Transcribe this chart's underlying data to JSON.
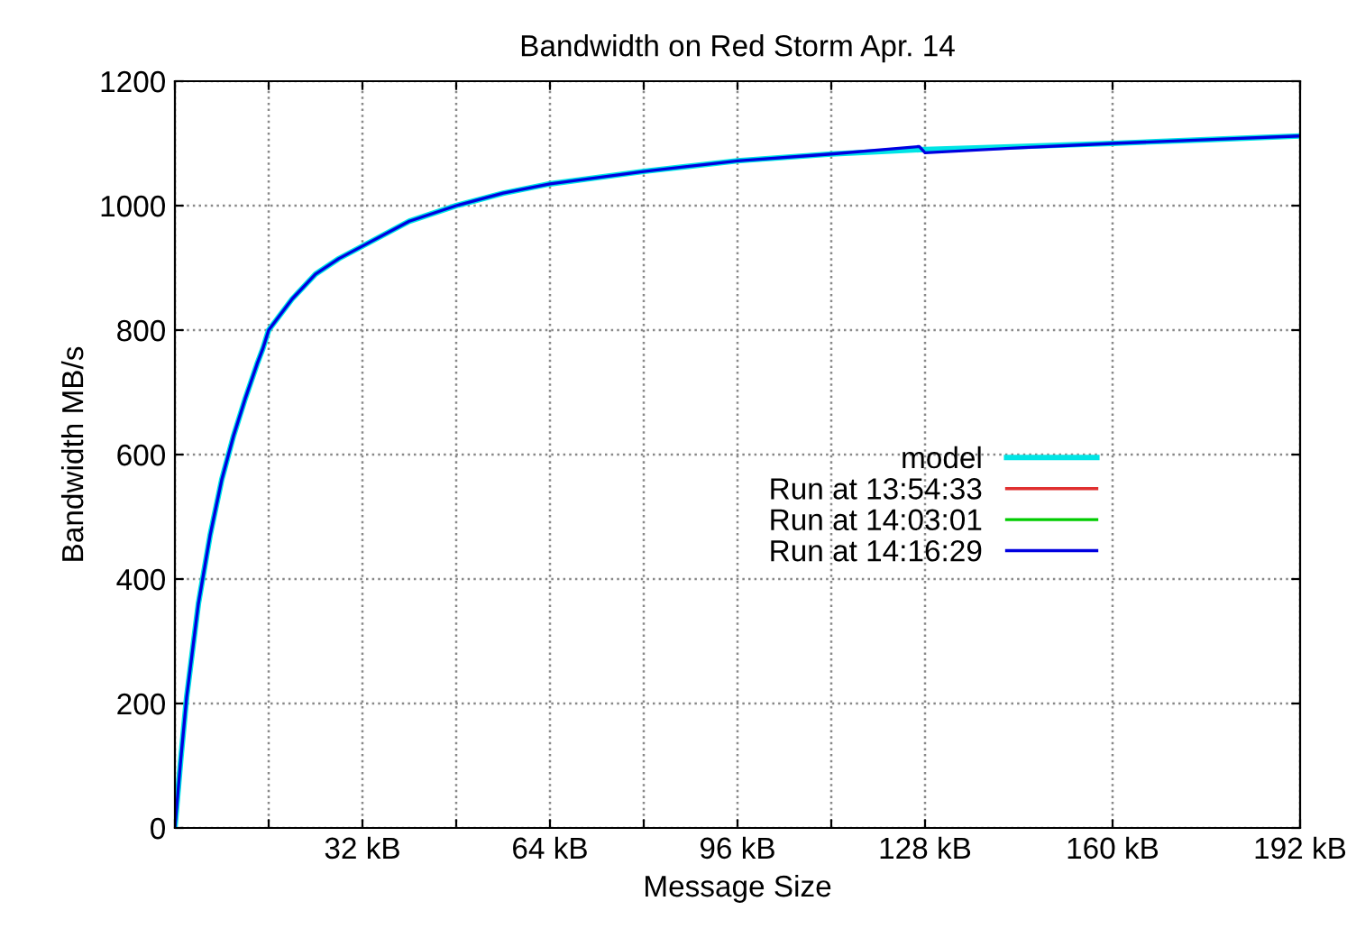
{
  "chart_data": {
    "type": "line",
    "title": "Bandwidth on Red Storm Apr. 14",
    "xlabel": "Message Size",
    "ylabel": "Bandwidth MB/s",
    "x": [
      0,
      1,
      2,
      4,
      6,
      8,
      10,
      12,
      14,
      15,
      16,
      20,
      24,
      28,
      32,
      40,
      48,
      56,
      64,
      80,
      96,
      112,
      127,
      128,
      144,
      160,
      176,
      192
    ],
    "series": [
      {
        "name": "model",
        "color": "#00e5e5",
        "values": [
          0,
          110,
          210,
          360,
          470,
          560,
          630,
          690,
          745,
          770,
          800,
          850,
          890,
          915,
          935,
          975,
          1000,
          1020,
          1035,
          1055,
          1072,
          1083,
          1090,
          1090,
          1095,
          1100,
          1106,
          1112
        ]
      },
      {
        "name": "Run at 13:54:33",
        "color": "#e03030",
        "values": [
          null,
          null,
          null,
          null,
          null,
          null,
          null,
          null,
          null,
          null,
          null,
          null,
          null,
          null,
          null,
          null,
          null,
          null,
          null,
          null,
          null,
          null,
          null,
          null,
          null,
          null,
          null,
          null
        ]
      },
      {
        "name": "Run at 14:03:01",
        "color": "#00cc00",
        "values": [
          null,
          null,
          null,
          null,
          null,
          null,
          null,
          null,
          null,
          null,
          null,
          null,
          null,
          null,
          null,
          null,
          null,
          null,
          null,
          null,
          null,
          null,
          null,
          null,
          null,
          null,
          null,
          null
        ]
      },
      {
        "name": "Run at 14:16:29",
        "color": "#0000e0",
        "values": [
          0,
          110,
          210,
          360,
          470,
          560,
          630,
          690,
          745,
          770,
          800,
          850,
          890,
          915,
          935,
          975,
          1000,
          1020,
          1035,
          1055,
          1072,
          1083,
          1095,
          1085,
          1093,
          1100,
          1106,
          1112
        ]
      }
    ],
    "xlim": [
      0,
      192
    ],
    "ylim": [
      0,
      1200
    ],
    "xticks": [
      {
        "value": 0,
        "label": null
      },
      {
        "value": 16,
        "label": null
      },
      {
        "value": 32,
        "label": "32 kB"
      },
      {
        "value": 48,
        "label": null
      },
      {
        "value": 64,
        "label": "64 kB"
      },
      {
        "value": 80,
        "label": null
      },
      {
        "value": 96,
        "label": "96 kB"
      },
      {
        "value": 112,
        "label": null
      },
      {
        "value": 128,
        "label": "128 kB"
      },
      {
        "value": 160,
        "label": "160 kB"
      },
      {
        "value": 192,
        "label": "192 kB"
      }
    ],
    "yticks": [
      0,
      200,
      400,
      600,
      800,
      1000,
      1200
    ],
    "grid": true,
    "legend": "center",
    "line_style": "solid"
  }
}
